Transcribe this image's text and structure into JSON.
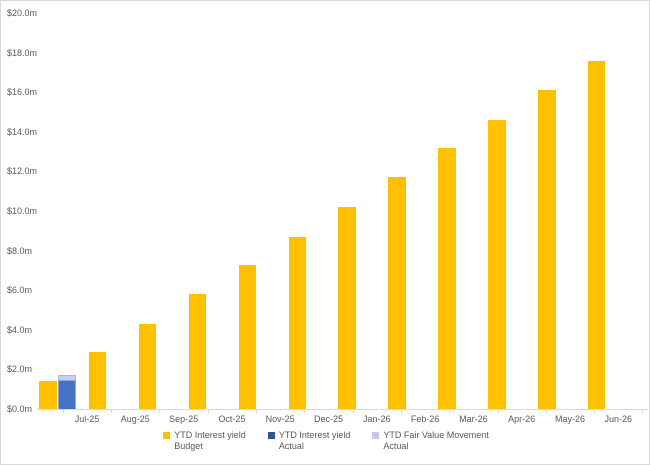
{
  "chart_data": {
    "type": "bar",
    "title": "",
    "xlabel": "",
    "ylabel": "",
    "categories": [
      "Jul-25",
      "Aug-25",
      "Sep-25",
      "Oct-25",
      "Nov-25",
      "Dec-25",
      "Jan-26",
      "Feb-26",
      "Mar-26",
      "Apr-26",
      "May-26",
      "Jun-26"
    ],
    "series": [
      {
        "name": "YTD Interest yield Budget",
        "legend_lines": [
          "YTD Interest yield",
          "Budget"
        ],
        "color": "#FFC000",
        "legend_color": "#FFC000",
        "values": [
          1.4,
          2.9,
          4.3,
          5.8,
          7.3,
          8.7,
          10.2,
          11.7,
          13.2,
          14.6,
          16.1,
          17.6
        ]
      },
      {
        "name": "YTD Interest yield Actual",
        "legend_lines": [
          "YTD Interest yield",
          "Actual"
        ],
        "color": "#4472C4",
        "border_color": "#8CA9DE",
        "legend_color": "#2F5597",
        "values": [
          1.45,
          0,
          0,
          0,
          0,
          0,
          0,
          0,
          0,
          0,
          0,
          0
        ]
      },
      {
        "name": "YTD Fair Value Movement Actual",
        "legend_lines": [
          "YTD Fair Value Movement",
          "Actual"
        ],
        "color": "#CDCDF4",
        "border_color": "#B0B1E6",
        "legend_color": "#C5C7F0",
        "stacked_on": "YTD Interest yield Actual",
        "values": [
          0.25,
          0,
          0,
          0,
          0,
          0,
          0,
          0,
          0,
          0,
          0,
          0
        ]
      }
    ],
    "y_tick_labels": [
      "$0.0m",
      "$2.0m",
      "$4.0m",
      "$6.0m",
      "$8.0m",
      "$10.0m",
      "$12.0m",
      "$14.0m",
      "$16.0m",
      "$18.0m",
      "$20.0m"
    ],
    "ylim": [
      0,
      20
    ],
    "y_tick_step": 2,
    "grid": false,
    "legend_position": "bottom",
    "axis_color": "#d9d9d9",
    "label_color": "#595959",
    "background_color": "#ffffff"
  }
}
